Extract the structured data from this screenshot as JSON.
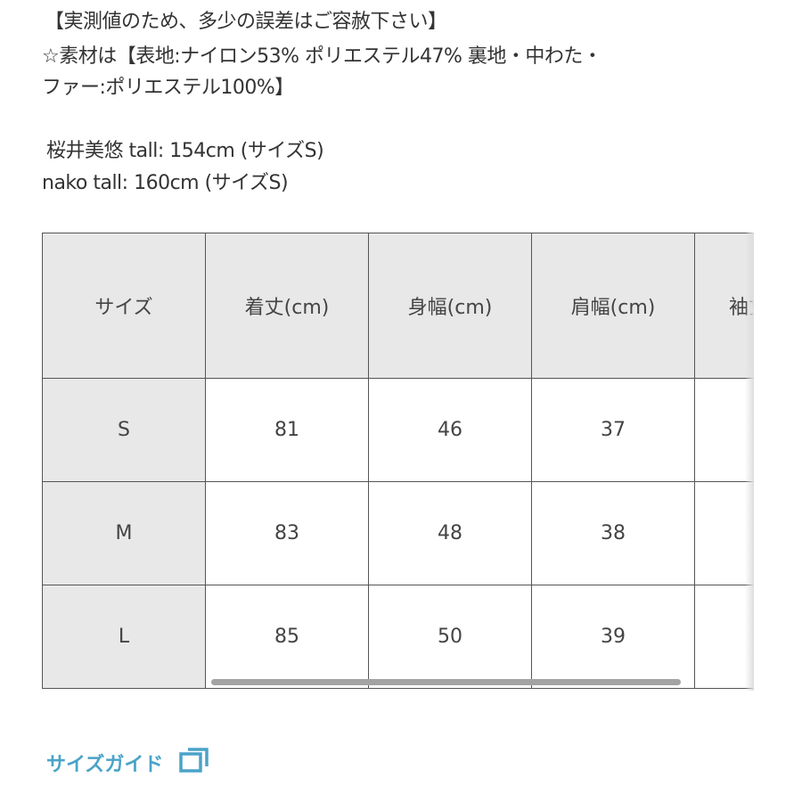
{
  "notes": {
    "line1": "【実測値のため、多少の誤差はご容赦下さい】",
    "line2": "☆素材は【表地:ナイロン53% ポリエステル47% 裏地・中わた・",
    "line3": "ファー:ポリエステル100%】",
    "model1": "桜井美悠 tall: 154cm (サイズS)",
    "model2": "nako tall: 160cm (サイズS)"
  },
  "size_table": {
    "headers": [
      "サイズ",
      "着丈(cm)",
      "身幅(cm)",
      "肩幅(cm)",
      "袖丈"
    ],
    "rows": [
      [
        "S",
        "81",
        "46",
        "37",
        ""
      ],
      [
        "M",
        "83",
        "48",
        "38",
        ""
      ],
      [
        "L",
        "85",
        "50",
        "39",
        ""
      ]
    ]
  },
  "size_guide": {
    "label": "サイズガイド",
    "icon": "external-window-icon",
    "color": "#4aa3c8"
  }
}
